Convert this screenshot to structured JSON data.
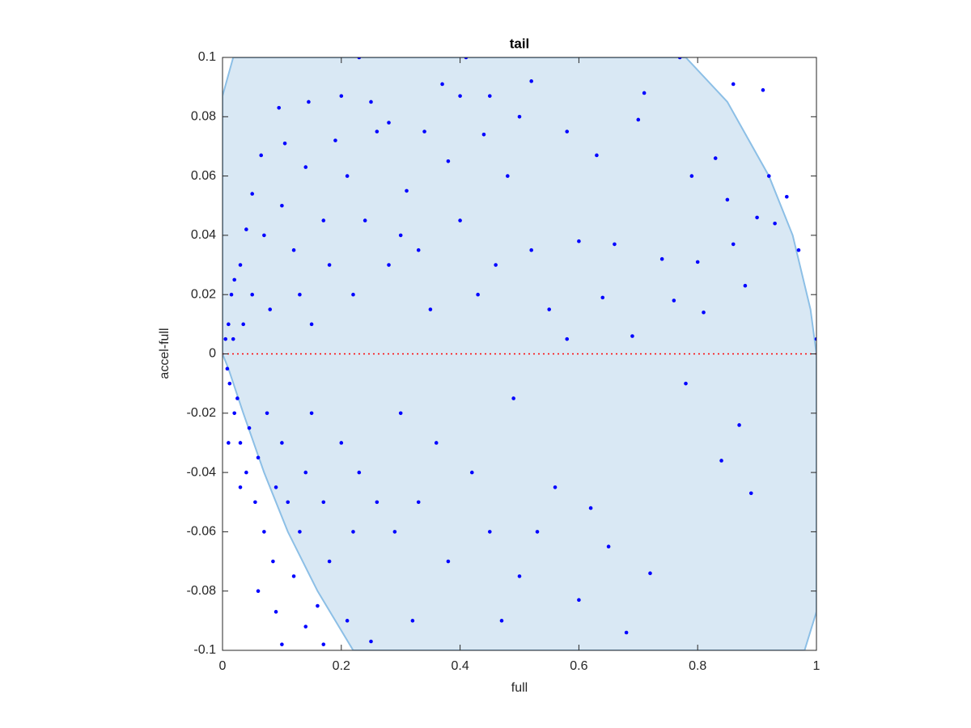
{
  "chart_data": {
    "type": "scatter",
    "title": "tail",
    "xlabel": "full",
    "ylabel": "accel-full",
    "xlim": [
      0,
      1
    ],
    "ylim": [
      -0.1,
      0.1
    ],
    "xticks": [
      0,
      0.2,
      0.4,
      0.6,
      0.8,
      1
    ],
    "yticks": [
      -0.1,
      -0.08,
      -0.06,
      -0.04,
      -0.02,
      0,
      0.02,
      0.04,
      0.06,
      0.08,
      0.1
    ],
    "region": {
      "color": "#d9e8f4",
      "edge": "#8cbfe6",
      "x": [
        0,
        0.018,
        0.78,
        0.85,
        0.92,
        0.96,
        0.99,
        1,
        1,
        0.98,
        0.22,
        0.16,
        0.11,
        0.07,
        0.035,
        0.01,
        0
      ],
      "y": [
        0.087,
        0.1,
        0.1,
        0.085,
        0.06,
        0.04,
        0.015,
        0,
        -0.087,
        -0.1,
        -0.1,
        -0.08,
        -0.06,
        -0.04,
        -0.02,
        -0.005,
        0
      ]
    },
    "hline": {
      "value": 0,
      "color": "#ff0000"
    },
    "series": [
      {
        "color": "#0000ff",
        "x": [
          0.005,
          0.01,
          0.008,
          0.012,
          0.015,
          0.02,
          0.025,
          0.018,
          0.03,
          0.03,
          0.035,
          0.04,
          0.045,
          0.05,
          0.055,
          0.06,
          0.065,
          0.07,
          0.07,
          0.075,
          0.08,
          0.085,
          0.09,
          0.095,
          0.1,
          0.1,
          0.105,
          0.11,
          0.12,
          0.12,
          0.13,
          0.13,
          0.14,
          0.14,
          0.145,
          0.15,
          0.15,
          0.16,
          0.17,
          0.17,
          0.18,
          0.18,
          0.19,
          0.2,
          0.2,
          0.21,
          0.21,
          0.22,
          0.22,
          0.23,
          0.23,
          0.24,
          0.25,
          0.25,
          0.26,
          0.26,
          0.28,
          0.28,
          0.29,
          0.3,
          0.3,
          0.31,
          0.32,
          0.33,
          0.33,
          0.34,
          0.35,
          0.36,
          0.37,
          0.38,
          0.38,
          0.4,
          0.4,
          0.41,
          0.42,
          0.43,
          0.44,
          0.45,
          0.45,
          0.46,
          0.47,
          0.48,
          0.49,
          0.5,
          0.5,
          0.52,
          0.52,
          0.53,
          0.55,
          0.56,
          0.58,
          0.58,
          0.6,
          0.6,
          0.62,
          0.63,
          0.64,
          0.65,
          0.66,
          0.68,
          0.69,
          0.7,
          0.71,
          0.72,
          0.74,
          0.76,
          0.77,
          0.78,
          0.79,
          0.8,
          0.81,
          0.83,
          0.84,
          0.85,
          0.86,
          0.86,
          0.87,
          0.88,
          0.89,
          0.9,
          0.91,
          0.92,
          0.93,
          0.95,
          0.97,
          1.0,
          0.02,
          0.01,
          0.04,
          0.06,
          0.09,
          0.1,
          0.14,
          0.17,
          0.05,
          0.03
        ],
        "y": [
          0.005,
          0.01,
          -0.005,
          -0.01,
          0.02,
          -0.02,
          -0.015,
          0.005,
          0.03,
          -0.03,
          0.01,
          -0.04,
          -0.025,
          0.02,
          -0.05,
          -0.035,
          0.067,
          0.04,
          -0.06,
          -0.02,
          0.015,
          -0.07,
          -0.045,
          0.083,
          0.05,
          -0.03,
          0.071,
          -0.05,
          0.035,
          -0.075,
          0.02,
          -0.06,
          0.063,
          -0.04,
          0.085,
          0.01,
          -0.02,
          -0.085,
          0.045,
          -0.05,
          0.03,
          -0.07,
          0.072,
          0.087,
          -0.03,
          0.06,
          -0.09,
          0.02,
          -0.06,
          0.1,
          -0.04,
          0.045,
          0.085,
          -0.097,
          0.075,
          -0.05,
          0.078,
          0.03,
          -0.06,
          0.04,
          -0.02,
          0.055,
          -0.09,
          0.035,
          -0.05,
          0.075,
          0.015,
          -0.03,
          0.091,
          0.065,
          -0.07,
          0.045,
          0.087,
          0.1,
          -0.04,
          0.02,
          0.074,
          0.087,
          -0.06,
          0.03,
          -0.09,
          0.06,
          -0.015,
          0.08,
          -0.075,
          0.092,
          0.035,
          -0.06,
          0.015,
          -0.045,
          0.075,
          0.005,
          -0.083,
          0.038,
          -0.052,
          0.067,
          0.019,
          -0.065,
          0.037,
          -0.094,
          0.006,
          0.079,
          0.088,
          -0.074,
          0.032,
          0.018,
          0.1,
          -0.01,
          0.06,
          0.031,
          0.014,
          0.066,
          -0.036,
          0.052,
          0.091,
          0.037,
          -0.024,
          0.023,
          -0.047,
          0.046,
          0.089,
          0.06,
          0.044,
          0.053,
          0.035,
          0.005,
          0.025,
          -0.03,
          0.042,
          -0.08,
          -0.087,
          -0.098,
          -0.092,
          -0.098,
          0.054,
          -0.045
        ]
      }
    ]
  }
}
